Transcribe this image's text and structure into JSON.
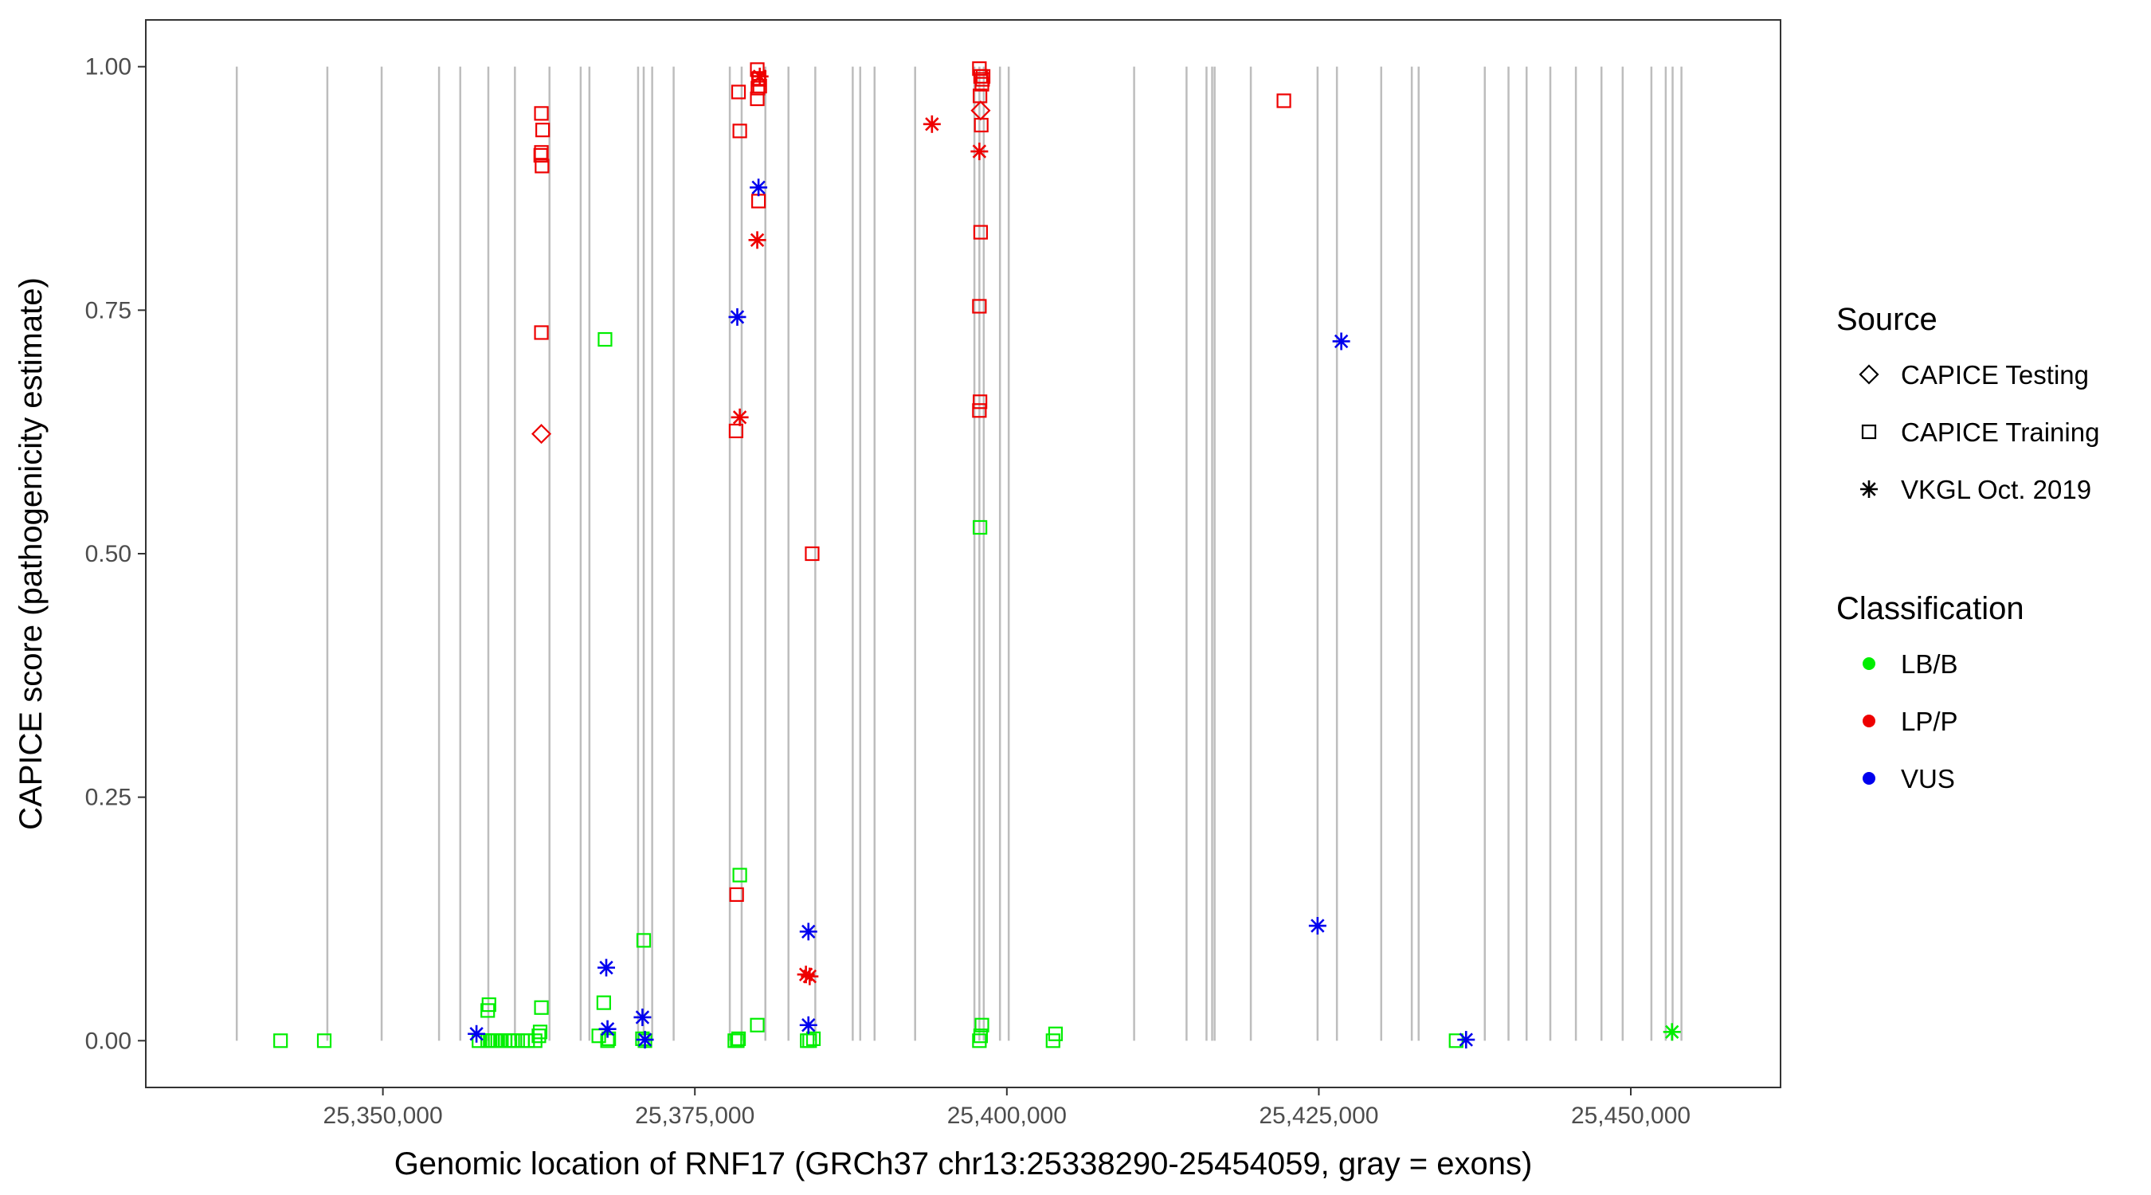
{
  "chart_data": {
    "type": "scatter",
    "title": "",
    "xlabel": "Genomic location of RNF17 (GRCh37 chr13:25338290-25454059, gray = exons)",
    "ylabel": "CAPICE score (pathogenicity estimate)",
    "xlim": [
      25331000,
      25462000
    ],
    "ylim": [
      -0.048,
      1.048
    ],
    "xticks": [
      25350000,
      25375000,
      25400000,
      25425000,
      25450000
    ],
    "xtick_labels": [
      "25,350,000",
      "25,375,000",
      "25,400,000",
      "25,425,000",
      "25,450,000"
    ],
    "yticks": [
      0,
      0.25,
      0.5,
      0.75,
      1.0
    ],
    "ytick_labels": [
      "0.00",
      "0.25",
      "0.50",
      "0.75",
      "1.00"
    ],
    "grid": false,
    "legend_position": "right",
    "exons": [
      25338290,
      25345550,
      25349900,
      25354500,
      25356200,
      25358450,
      25360580,
      25363350,
      25365850,
      25366550,
      25370450,
      25370900,
      25371580,
      25373300,
      25377800,
      25378750,
      25380650,
      25382500,
      25384650,
      25387650,
      25388250,
      25389400,
      25392650,
      25397400,
      25397800,
      25398150,
      25399450,
      25400150,
      25410200,
      25414400,
      25416000,
      25416450,
      25416650,
      25419550,
      25424900,
      25426450,
      25430000,
      25432450,
      25433000,
      25438300,
      25440200,
      25441650,
      25443550,
      25445600,
      25447650,
      25449350,
      25451650,
      25452800,
      25453350,
      25454059
    ],
    "legend": {
      "source_title": "Source",
      "source_entries": [
        {
          "label": "CAPICE Testing",
          "shape": "diamond"
        },
        {
          "label": "CAPICE Training",
          "shape": "square"
        },
        {
          "label": "VKGL Oct. 2019",
          "shape": "asterisk"
        }
      ],
      "class_title": "Classification",
      "class_entries": [
        {
          "label": "LB/B",
          "color": "#00ee00"
        },
        {
          "label": "LP/P",
          "color": "#ee0000"
        },
        {
          "label": "VUS",
          "color": "#0000ee"
        }
      ]
    },
    "colors": {
      "LB/B": "#00ee00",
      "LP/P": "#ee0000",
      "VUS": "#0000ee"
    },
    "series": [
      {
        "name": "CAPICE Training",
        "classification": "LB/B",
        "shape": "square",
        "x": [
          25341800,
          25345300,
          25357700,
          25358400,
          25358600,
          25358800,
          25359000,
          25359200,
          25359500,
          25359800,
          25360100,
          25360400,
          25360800,
          25361200,
          25361600,
          25362200,
          25362500,
          25358400,
          25358500,
          25362600,
          25362700,
          25367300,
          25367700,
          25368000,
          25367800,
          25368100,
          25370900,
          25371000,
          25370800,
          25378200,
          25378500,
          25378600,
          25378400,
          25380000,
          25384000,
          25384200,
          25384500,
          25397800,
          25397900,
          25398000,
          25397850,
          25403700,
          25403900,
          25436000
        ],
        "y": [
          0.0,
          0.0,
          0.0,
          0.0,
          0.0,
          0.0,
          0.0,
          0.0,
          0.0,
          0.0,
          0.0,
          0.0,
          0.0,
          0.0,
          0.0,
          0.0,
          0.005,
          0.031,
          0.037,
          0.009,
          0.034,
          0.005,
          0.039,
          0.0,
          0.72,
          0.002,
          0.103,
          0.0,
          0.002,
          0.0,
          0.002,
          0.17,
          0.0,
          0.016,
          0.0,
          0.0,
          0.002,
          0.0,
          0.005,
          0.016,
          0.527,
          0.0,
          0.007,
          0.0
        ]
      },
      {
        "name": "CAPICE Training",
        "classification": "LP/P",
        "shape": "square",
        "x": [
          25362700,
          25362800,
          25362700,
          25362750,
          25362700,
          25362650,
          25378500,
          25378600,
          25378300,
          25380000,
          25380100,
          25380200,
          25380000,
          25380050,
          25380150,
          25380100,
          25378350,
          25384400,
          25397800,
          25397900,
          25398000,
          25397850,
          25397950,
          25398050,
          25397900,
          25397800,
          25397850,
          25397800,
          25398100,
          25422200
        ],
        "y": [
          0.952,
          0.935,
          0.912,
          0.898,
          0.727,
          0.909,
          0.974,
          0.934,
          0.626,
          0.997,
          0.987,
          0.98,
          0.967,
          0.978,
          0.988,
          0.862,
          0.15,
          0.5,
          0.998,
          0.99,
          0.982,
          0.97,
          0.94,
          0.987,
          0.83,
          0.754,
          0.656,
          0.647,
          0.99,
          0.965
        ]
      },
      {
        "name": "CAPICE Testing",
        "classification": "LP/P",
        "shape": "diamond",
        "x": [
          25362700,
          25397900
        ],
        "y": [
          0.623,
          0.955
        ]
      },
      {
        "name": "VKGL Oct. 2019",
        "classification": "LB/B",
        "shape": "asterisk",
        "x": [
          25453300
        ],
        "y": [
          0.009
        ]
      },
      {
        "name": "VKGL Oct. 2019",
        "classification": "LP/P",
        "shape": "asterisk",
        "x": [
          25394000,
          25397800,
          25380000,
          25380200,
          25378600,
          25383900,
          25384200
        ],
        "y": [
          0.941,
          0.913,
          0.822,
          0.99,
          0.64,
          0.068,
          0.066
        ]
      },
      {
        "name": "VKGL Oct. 2019",
        "classification": "VUS",
        "shape": "asterisk",
        "x": [
          25357500,
          25367900,
          25368000,
          25370800,
          25371000,
          25378400,
          25380100,
          25384100,
          25384100,
          25424900,
          25426800,
          25436800
        ],
        "y": [
          0.007,
          0.075,
          0.012,
          0.024,
          0.001,
          0.743,
          0.876,
          0.112,
          0.016,
          0.118,
          0.718,
          0.001
        ]
      }
    ]
  }
}
